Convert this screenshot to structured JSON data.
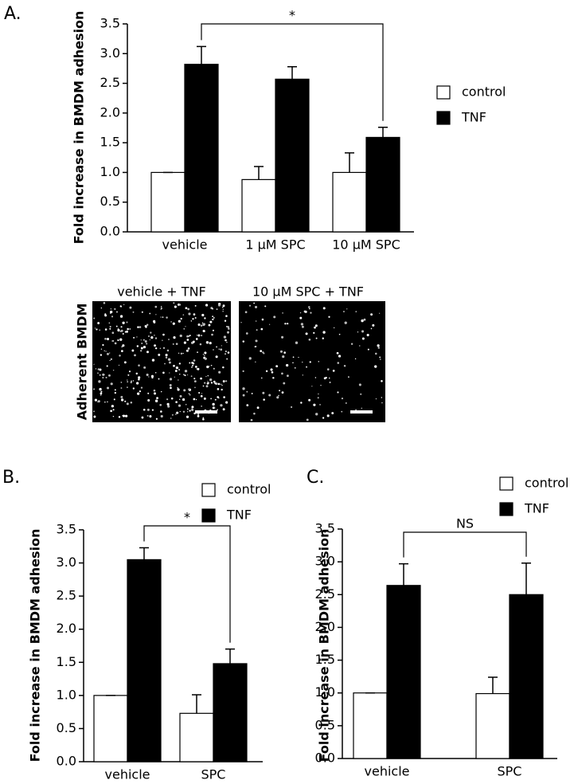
{
  "chart_data": [
    {
      "type": "bar",
      "panel": "A.",
      "ylabel": "Fold increase in BMDM adhesion",
      "categories": [
        "vehicle",
        "1 μM SPC",
        "10 μM SPC"
      ],
      "series": [
        {
          "name": "control",
          "color": "#ffffff",
          "values": [
            1.0,
            0.88,
            1.0
          ],
          "errors": [
            0,
            0.22,
            0.33
          ]
        },
        {
          "name": "TNF",
          "color": "#000000",
          "values": [
            2.82,
            2.57,
            1.59
          ],
          "errors": [
            0.3,
            0.21,
            0.17
          ]
        }
      ],
      "ylim": [
        0,
        3.5
      ],
      "yticks": [
        {
          "value": 0,
          "label": "0.0"
        },
        0.5,
        {
          "value": 1,
          "label": "1.0"
        },
        1.5,
        {
          "value": 2,
          "label": "2.0"
        },
        2.5,
        {
          "value": 3,
          "label": "3.0"
        },
        3.5
      ],
      "annotation": "*"
    },
    {
      "type": "bar",
      "panel": "B.",
      "ylabel": "Fold increase in BMDM adhesion",
      "categories": [
        "vehicle",
        "SPC"
      ],
      "series": [
        {
          "name": "control",
          "color": "#ffffff",
          "values": [
            1.0,
            0.73
          ],
          "errors": [
            0,
            0.28
          ]
        },
        {
          "name": "TNF",
          "color": "#000000",
          "values": [
            3.05,
            1.48
          ],
          "errors": [
            0.18,
            0.22
          ]
        }
      ],
      "ylim": [
        0,
        3.5
      ],
      "yticks": [
        {
          "value": 0,
          "label": "0.0"
        },
        0.5,
        {
          "value": 1,
          "label": "1.0"
        },
        1.5,
        {
          "value": 2,
          "label": "2.0"
        },
        2.5,
        {
          "value": 3,
          "label": "3.0"
        },
        3.5
      ],
      "annotation": "*"
    },
    {
      "type": "bar",
      "panel": "C.",
      "ylabel": "Fold increase in BMDM adhesion",
      "categories": [
        "vehicle",
        "SPC"
      ],
      "series": [
        {
          "name": "control",
          "color": "#ffffff",
          "values": [
            1.0,
            0.99
          ],
          "errors": [
            0,
            0.25
          ]
        },
        {
          "name": "TNF",
          "color": "#000000",
          "values": [
            2.64,
            2.5
          ],
          "errors": [
            0.33,
            0.48
          ]
        }
      ],
      "ylim": [
        0,
        3.5
      ],
      "yticks": [
        {
          "value": 0,
          "label": "0.0"
        },
        0.5,
        {
          "value": 1,
          "label": "1.0"
        },
        1.5,
        {
          "value": 2,
          "label": "2.0"
        },
        2.5,
        {
          "value": 3,
          "label": "3.0"
        },
        3.5
      ],
      "annotation": "NS"
    }
  ],
  "images": {
    "ylabel": "Adherent BMDM",
    "titles": [
      "vehicle + TNF",
      "10 μM SPC + TNF"
    ]
  }
}
